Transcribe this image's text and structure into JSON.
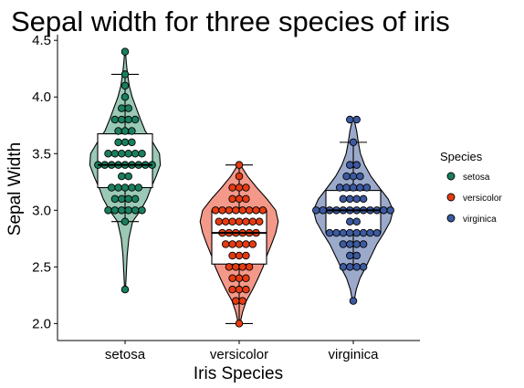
{
  "chart_data": {
    "type": "violin",
    "title": "Sepal width for three species of iris",
    "xlabel": "Iris Species",
    "ylabel": "Sepal Width",
    "ylim": [
      1.85,
      4.55
    ],
    "yticks": [
      2.0,
      2.5,
      3.0,
      3.5,
      4.0,
      4.5
    ],
    "ytick_labels": [
      "2.0",
      "2.5",
      "3.0",
      "3.5",
      "4.0",
      "4.5"
    ],
    "grid": false,
    "legend": {
      "title": "Species",
      "placement": "right"
    },
    "categories": [
      "setosa",
      "versicolor",
      "virginica"
    ],
    "series": [
      {
        "name": "setosa",
        "color": "#1b7f5f",
        "fill": "#9ac9b6",
        "box": {
          "q1": 3.2,
          "median": 3.4,
          "q3": 3.675,
          "whisker_low": 2.9,
          "whisker_high": 4.2
        },
        "points": [
          {
            "y": 2.3,
            "n": 1
          },
          {
            "y": 2.9,
            "n": 1
          },
          {
            "y": 3.0,
            "n": 6
          },
          {
            "y": 3.1,
            "n": 4
          },
          {
            "y": 3.2,
            "n": 5
          },
          {
            "y": 3.3,
            "n": 2
          },
          {
            "y": 3.4,
            "n": 9
          },
          {
            "y": 3.5,
            "n": 6
          },
          {
            "y": 3.6,
            "n": 3
          },
          {
            "y": 3.7,
            "n": 3
          },
          {
            "y": 3.8,
            "n": 4
          },
          {
            "y": 3.9,
            "n": 2
          },
          {
            "y": 4.0,
            "n": 1
          },
          {
            "y": 4.1,
            "n": 1
          },
          {
            "y": 4.2,
            "n": 1
          },
          {
            "y": 4.4,
            "n": 1
          }
        ],
        "density": [
          {
            "y": 2.3,
            "w": 0.01
          },
          {
            "y": 2.45,
            "w": 0.03
          },
          {
            "y": 2.6,
            "w": 0.05
          },
          {
            "y": 2.75,
            "w": 0.09
          },
          {
            "y": 2.9,
            "w": 0.18
          },
          {
            "y": 3.0,
            "w": 0.37
          },
          {
            "y": 3.1,
            "w": 0.52
          },
          {
            "y": 3.2,
            "w": 0.62
          },
          {
            "y": 3.3,
            "w": 0.74
          },
          {
            "y": 3.4,
            "w": 0.84
          },
          {
            "y": 3.5,
            "w": 0.82
          },
          {
            "y": 3.6,
            "w": 0.66
          },
          {
            "y": 3.7,
            "w": 0.48
          },
          {
            "y": 3.8,
            "w": 0.37
          },
          {
            "y": 3.9,
            "w": 0.27
          },
          {
            "y": 4.0,
            "w": 0.17
          },
          {
            "y": 4.1,
            "w": 0.1
          },
          {
            "y": 4.2,
            "w": 0.06
          },
          {
            "y": 4.3,
            "w": 0.03
          },
          {
            "y": 4.4,
            "w": 0.01
          }
        ]
      },
      {
        "name": "versicolor",
        "color": "#e63b12",
        "fill": "#f4998a",
        "box": {
          "q1": 2.525,
          "median": 2.8,
          "q3": 3.0,
          "whisker_low": 2.0,
          "whisker_high": 3.4
        },
        "points": [
          {
            "y": 2.0,
            "n": 1
          },
          {
            "y": 2.2,
            "n": 2
          },
          {
            "y": 2.3,
            "n": 3
          },
          {
            "y": 2.4,
            "n": 3
          },
          {
            "y": 2.5,
            "n": 4
          },
          {
            "y": 2.6,
            "n": 3
          },
          {
            "y": 2.7,
            "n": 5
          },
          {
            "y": 2.8,
            "n": 6
          },
          {
            "y": 2.9,
            "n": 7
          },
          {
            "y": 3.0,
            "n": 8
          },
          {
            "y": 3.1,
            "n": 3
          },
          {
            "y": 3.2,
            "n": 3
          },
          {
            "y": 3.3,
            "n": 1
          },
          {
            "y": 3.4,
            "n": 1
          }
        ],
        "density": [
          {
            "y": 2.0,
            "w": 0.02
          },
          {
            "y": 2.1,
            "w": 0.08
          },
          {
            "y": 2.2,
            "w": 0.17
          },
          {
            "y": 2.3,
            "w": 0.32
          },
          {
            "y": 2.4,
            "w": 0.45
          },
          {
            "y": 2.5,
            "w": 0.57
          },
          {
            "y": 2.6,
            "w": 0.66
          },
          {
            "y": 2.7,
            "w": 0.77
          },
          {
            "y": 2.8,
            "w": 0.87
          },
          {
            "y": 2.9,
            "w": 0.93
          },
          {
            "y": 3.0,
            "w": 0.87
          },
          {
            "y": 3.1,
            "w": 0.66
          },
          {
            "y": 3.2,
            "w": 0.42
          },
          {
            "y": 3.3,
            "w": 0.2
          },
          {
            "y": 3.4,
            "w": 0.03
          }
        ]
      },
      {
        "name": "virginica",
        "color": "#3c5aa0",
        "fill": "#9ba9cb",
        "box": {
          "q1": 2.8,
          "median": 3.0,
          "q3": 3.175,
          "whisker_low": 2.5,
          "whisker_high": 3.6
        },
        "points": [
          {
            "y": 2.2,
            "n": 1
          },
          {
            "y": 2.5,
            "n": 4
          },
          {
            "y": 2.6,
            "n": 2
          },
          {
            "y": 2.7,
            "n": 4
          },
          {
            "y": 2.8,
            "n": 8
          },
          {
            "y": 2.9,
            "n": 2
          },
          {
            "y": 3.0,
            "n": 12
          },
          {
            "y": 3.1,
            "n": 4
          },
          {
            "y": 3.2,
            "n": 5
          },
          {
            "y": 3.3,
            "n": 3
          },
          {
            "y": 3.4,
            "n": 2
          },
          {
            "y": 3.6,
            "n": 1
          },
          {
            "y": 3.8,
            "n": 2
          }
        ],
        "density": [
          {
            "y": 2.2,
            "w": 0.02
          },
          {
            "y": 2.3,
            "w": 0.07
          },
          {
            "y": 2.4,
            "w": 0.16
          },
          {
            "y": 2.5,
            "w": 0.3
          },
          {
            "y": 2.6,
            "w": 0.43
          },
          {
            "y": 2.7,
            "w": 0.56
          },
          {
            "y": 2.8,
            "w": 0.73
          },
          {
            "y": 2.9,
            "w": 0.88
          },
          {
            "y": 3.0,
            "w": 0.95
          },
          {
            "y": 3.1,
            "w": 0.83
          },
          {
            "y": 3.2,
            "w": 0.62
          },
          {
            "y": 3.3,
            "w": 0.42
          },
          {
            "y": 3.4,
            "w": 0.27
          },
          {
            "y": 3.5,
            "w": 0.17
          },
          {
            "y": 3.6,
            "w": 0.12
          },
          {
            "y": 3.7,
            "w": 0.08
          },
          {
            "y": 3.8,
            "w": 0.02
          }
        ]
      }
    ]
  }
}
